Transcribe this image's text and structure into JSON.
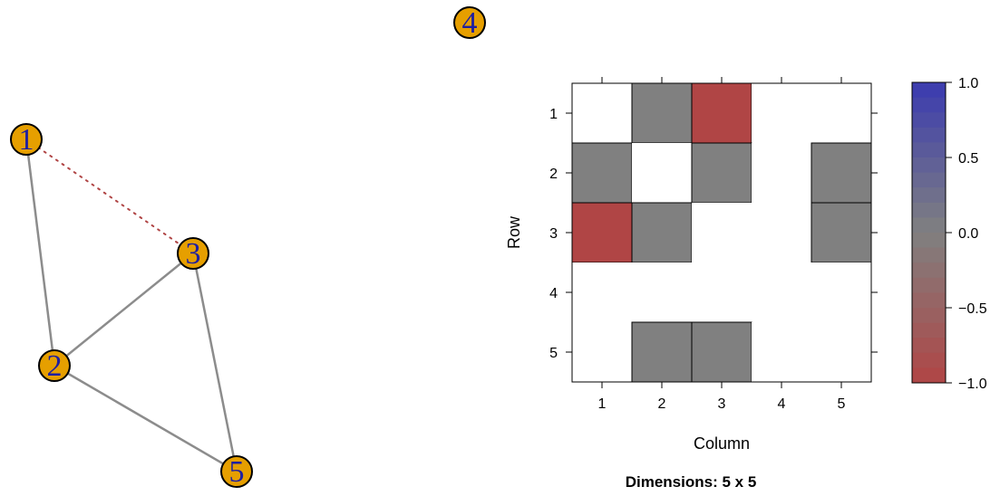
{
  "network": {
    "nodes": [
      {
        "id": "1",
        "label": "1"
      },
      {
        "id": "2",
        "label": "2"
      },
      {
        "id": "3",
        "label": "3"
      },
      {
        "id": "4",
        "label": "4"
      },
      {
        "id": "5",
        "label": "5"
      }
    ],
    "edges": [
      {
        "from": "1",
        "to": "2",
        "weight": 0,
        "style": "solid"
      },
      {
        "from": "1",
        "to": "3",
        "weight": -1,
        "style": "dotted"
      },
      {
        "from": "2",
        "to": "3",
        "weight": 0,
        "style": "solid"
      },
      {
        "from": "2",
        "to": "5",
        "weight": 0,
        "style": "solid"
      },
      {
        "from": "3",
        "to": "5",
        "weight": 0,
        "style": "solid"
      }
    ],
    "colors": {
      "node_fill": "#E69F00",
      "node_border": "#000000",
      "node_label": "#1F1FA0",
      "edge_neutral": "#8C8C8C",
      "edge_negative": "#B04545"
    }
  },
  "chart_data": {
    "type": "heatmap",
    "rows": [
      "1",
      "2",
      "3",
      "4",
      "5"
    ],
    "columns": [
      "1",
      "2",
      "3",
      "4",
      "5"
    ],
    "matrix": [
      [
        null,
        0,
        -1,
        null,
        null
      ],
      [
        0,
        null,
        0,
        null,
        0
      ],
      [
        -1,
        0,
        null,
        null,
        0
      ],
      [
        null,
        null,
        null,
        null,
        null
      ],
      [
        null,
        0,
        0,
        null,
        null
      ]
    ],
    "xlabel": "Column",
    "ylabel": "Row",
    "caption": "Dimensions: 5 x 5",
    "colorbar": {
      "range": [
        -1,
        1
      ],
      "ticks": [
        "1.0",
        "0.5",
        "0.0",
        "−0.5",
        "−1.0"
      ],
      "tick_values": [
        1,
        0.5,
        0,
        -0.5,
        -1
      ],
      "levels": 20,
      "high_color": "#3A3AB0",
      "mid_color": "#808080",
      "low_color": "#B04545"
    },
    "grid": false
  }
}
